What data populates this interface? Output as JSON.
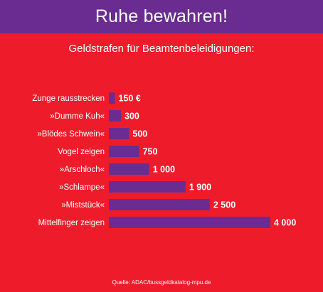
{
  "banner": {
    "title": "Ruhe bewahren!"
  },
  "colors": {
    "background": "#ee1c2b",
    "banner": "#6a2c91",
    "bar": "#6a2c91",
    "text": "#ffffff"
  },
  "chart_data": {
    "type": "bar",
    "orientation": "horizontal",
    "title": "Geldstrafen für Beamtenbeleidigungen:",
    "categories": [
      "Zunge rausstrecken",
      "»Dumme Kuh«",
      "»Blödes Schwein«",
      "Vogel zeigen",
      "»Arschloch«",
      "»Schlampe«",
      "»Miststück«",
      "Mittelfinger zeigen"
    ],
    "values": [
      150,
      300,
      500,
      750,
      1000,
      1900,
      2500,
      4000
    ],
    "value_labels": [
      "150 €",
      "300",
      "500",
      "750",
      "1 000",
      "1 900",
      "2 500",
      "4 000"
    ],
    "grid": false,
    "legend": "none"
  },
  "source": "Quelle: ADAC/bussgeldkatalog-mpu.de"
}
